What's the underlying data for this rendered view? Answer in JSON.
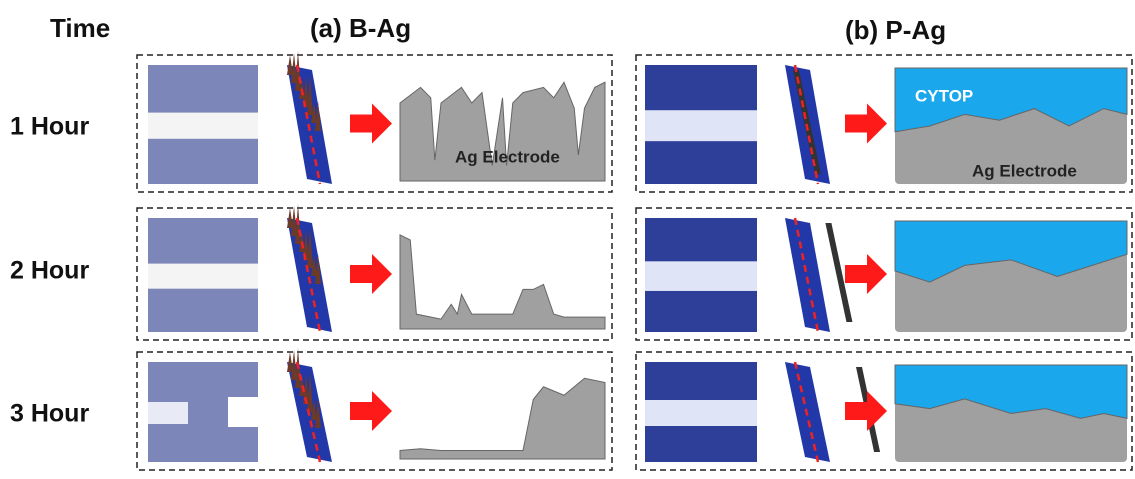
{
  "header": {
    "time": "Time",
    "panel_a": "(a) B-Ag",
    "panel_b": "(b) P-Ag"
  },
  "rows": [
    {
      "label": "1 Hour"
    },
    {
      "label": "2 Hour"
    },
    {
      "label": "3 Hour"
    }
  ],
  "annotations": {
    "electrode_a": "Ag Electrode",
    "cytop": "CYTOP",
    "electrode_b": "Ag Electrode"
  }
}
